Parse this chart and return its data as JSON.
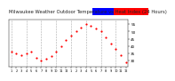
{
  "title": "Milwaukee Weather Outdoor Temperature vs Heat Index (24 Hours)",
  "title_fontsize": 3.8,
  "background_color": "#ffffff",
  "plot_bg_color": "#ffffff",
  "grid_color": "#aaaaaa",
  "temp_data": [
    [
      1,
      36
    ],
    [
      2,
      35
    ],
    [
      3,
      34
    ],
    [
      4,
      35
    ],
    [
      5,
      36
    ],
    [
      6,
      32
    ],
    [
      7,
      30
    ],
    [
      8,
      31
    ],
    [
      9,
      33
    ],
    [
      10,
      36
    ],
    [
      11,
      40
    ],
    [
      12,
      44
    ],
    [
      13,
      47
    ],
    [
      14,
      50
    ],
    [
      15,
      53
    ],
    [
      16,
      55
    ],
    [
      17,
      54
    ],
    [
      18,
      52
    ],
    [
      19,
      50
    ],
    [
      20,
      46
    ],
    [
      21,
      42
    ],
    [
      22,
      38
    ],
    [
      23,
      34
    ],
    [
      24,
      29
    ]
  ],
  "dot_color": "#ff0000",
  "dot_size": 2.5,
  "ylim": [
    26,
    58
  ],
  "yticks": [
    30,
    35,
    40,
    45,
    50,
    55
  ],
  "ytick_labels": [
    "30",
    "35",
    "40",
    "45",
    "50",
    "55"
  ],
  "grid_hours": [
    1,
    4,
    7,
    10,
    13,
    16,
    19,
    22
  ],
  "legend_blue": "#0000ff",
  "legend_red": "#ff0000"
}
